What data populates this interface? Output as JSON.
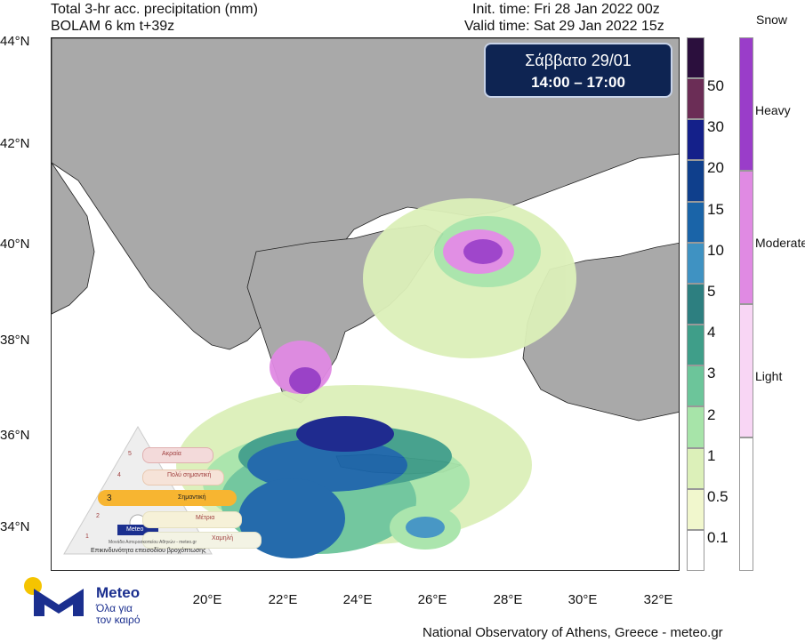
{
  "header": {
    "title_left": "Total 3-hr acc. precipitation (mm)",
    "model_left": "BOLAM 6 km t+39z",
    "init_time": "Init. time: Fri 28 Jan 2022 00z",
    "valid_time": "Valid time: Sat 29 Jan 2022 15z"
  },
  "date_box": {
    "day": "Σάββατο 29/01",
    "hours": "14:00 – 17:00"
  },
  "lat_labels": [
    "44°N",
    "42°N",
    "40°N",
    "38°N",
    "36°N",
    "34°N"
  ],
  "lon_labels": [
    "20°E",
    "22°E",
    "24°E",
    "26°E",
    "28°E",
    "30°E",
    "32°E"
  ],
  "rain_scale": {
    "labels": [
      "50",
      "30",
      "20",
      "15",
      "10",
      "5",
      "4",
      "3",
      "2",
      "1",
      "0.5",
      "0.1"
    ],
    "colors": [
      "#2b0f3d",
      "#6b2d56",
      "#14208a",
      "#0f3f8c",
      "#1a64a8",
      "#3f92c2",
      "#2d7f80",
      "#3f9e89",
      "#6cc59a",
      "#a7e4a9",
      "#dcf0b9",
      "#f1f7cd",
      "#ffffff"
    ]
  },
  "snow_scale": {
    "title": "Snow",
    "labels": [
      "Heavy",
      "Moderate",
      "Light"
    ],
    "colors": [
      "#9a3dc9",
      "#e08ae3",
      "#f8d6f5",
      "#ffffff"
    ]
  },
  "severity_panel": {
    "levels": [
      {
        "num": "5",
        "label": "Ακραία"
      },
      {
        "num": "4",
        "label": "Πολύ σημαντική"
      },
      {
        "num": "3",
        "label": "Σημαντική"
      },
      {
        "num": "2",
        "label": "Μέτρια"
      },
      {
        "num": "1",
        "label": "Χαμηλή"
      }
    ],
    "brand": "Meteo",
    "subtitle": "Μονάδα Αστεροσκοπείου Αθηνών - meteo.gr",
    "caption": "Επικινδυνότητα επεισοδίου βροχόπτωσης"
  },
  "logo": {
    "word": "Meteo",
    "tagline": "Όλα για τον καιρό"
  },
  "credit": "National Observatory of Athens, Greece - meteo.gr",
  "colors": {
    "land": "#a9a9a9",
    "sea": "#ffffff",
    "date_box": "#0e2452",
    "brand_blue": "#1b2f8f",
    "brand_yellow": "#f5c400"
  }
}
